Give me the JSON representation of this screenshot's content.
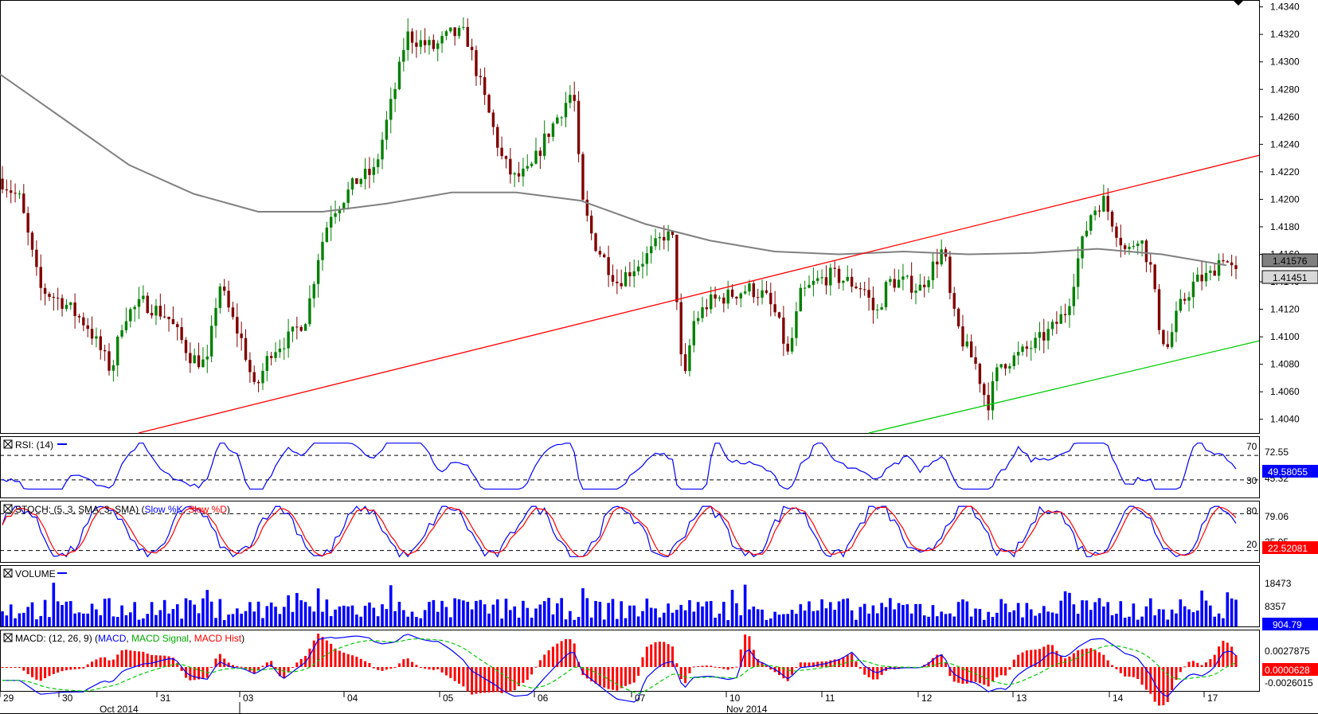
{
  "chart_data": [
    {
      "type": "candlestick",
      "panel": "price",
      "ylim": [
        1.403,
        1.4345
      ],
      "yticks": [
        "1.4340",
        "1.4320",
        "1.4300",
        "1.4280",
        "1.4260",
        "1.4240",
        "1.4220",
        "1.4200",
        "1.4180",
        "1.4160",
        "1.4140",
        "1.4120",
        "1.4100",
        "1.4080",
        "1.4060",
        "1.4040"
      ],
      "last_price_label": "1.41451",
      "ma_label": "1.41576",
      "moving_average_anchor_values": [
        1.4291,
        1.4258,
        1.4225,
        1.4204,
        1.4191,
        1.4191,
        1.4197,
        1.4205,
        1.4205,
        1.4199,
        1.4182,
        1.417,
        1.4162,
        1.416,
        1.4162,
        1.416,
        1.4161,
        1.4164,
        1.416,
        1.4152
      ],
      "trendlines": [
        {
          "color": "#ff0000",
          "from": {
            "x": 0.11,
            "y": 1.403
          },
          "to": {
            "x": 1.0,
            "y": 1.4232
          }
        },
        {
          "color": "#00cc00",
          "from": {
            "x": 0.69,
            "y": 1.403
          },
          "to": {
            "x": 1.0,
            "y": 1.4097
          }
        }
      ]
    },
    {
      "type": "line",
      "panel": "rsi",
      "title": "RSI: (14)",
      "ylim": [
        0,
        100
      ],
      "levels": [
        "70",
        "30"
      ],
      "value_label": "49.58055",
      "axis_labels": [
        "72.55",
        "45.32"
      ]
    },
    {
      "type": "line",
      "panel": "stoch",
      "title": "STOCH: (5, 3, SMA, 3, SMA)",
      "series": [
        {
          "name": "Slow %K",
          "color": "#0000ff"
        },
        {
          "name": "Slow %D",
          "color": "#ff0000"
        }
      ],
      "levels": [
        "80",
        "20"
      ],
      "value_label": "22.52081",
      "axis_labels": [
        "79.06",
        "25.05"
      ]
    },
    {
      "type": "bar",
      "panel": "volume",
      "title": "VOLUME",
      "value_label": "904.79",
      "axis_labels": [
        "18473",
        "8357"
      ]
    },
    {
      "type": "line",
      "panel": "macd",
      "title": "MACD: (12, 26, 9)",
      "series": [
        {
          "name": "MACD",
          "color": "#0000ff"
        },
        {
          "name": "MACD Signal",
          "color": "#00cc00"
        },
        {
          "name": "MACD Hist",
          "color": "#ff0000"
        }
      ],
      "value_label": "0.0000628",
      "axis_labels": [
        "0.0027875",
        "-0.0026015"
      ]
    }
  ],
  "x_axis": {
    "day_labels": [
      "29",
      "30",
      "31",
      "03",
      "04",
      "05",
      "06",
      "07",
      "10",
      "11",
      "12",
      "13",
      "14",
      "17"
    ],
    "month_labels": [
      "Oct 2014",
      "Nov 2014"
    ]
  },
  "colors": {
    "bull": "#008000",
    "bear": "#800000",
    "ma": "#808080",
    "rsi": "#0000ff",
    "volume": "#0000ff"
  }
}
